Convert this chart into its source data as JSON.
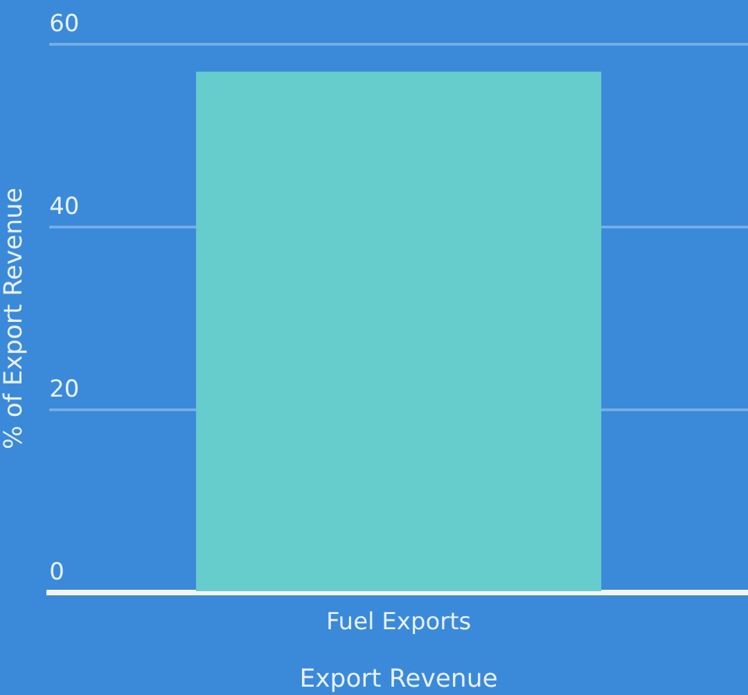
{
  "chart_data": {
    "type": "bar",
    "xlabel": "Export Revenue",
    "ylabel": "% of Export Revenue",
    "categories": [
      "Fuel Exports"
    ],
    "values": [
      57
    ],
    "color": "#66cccc",
    "ylim": [
      0,
      60
    ],
    "yticks": [
      0,
      20,
      40,
      60
    ],
    "grid": "y",
    "legend": false
  }
}
